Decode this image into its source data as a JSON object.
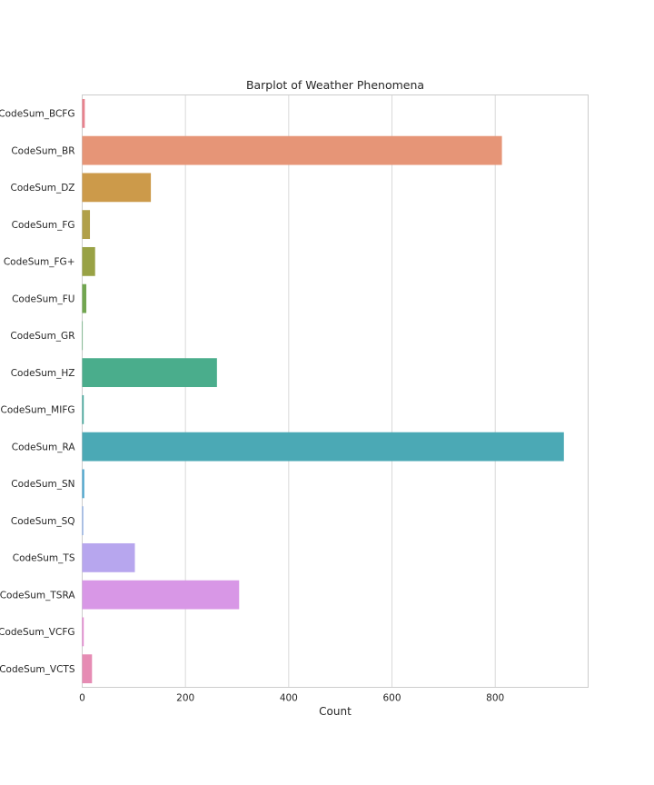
{
  "chart_data": {
    "type": "bar",
    "orientation": "horizontal",
    "title": "Barplot of Weather Phenomena",
    "xlabel": "Count",
    "ylabel": "",
    "xlim": [
      0,
      980
    ],
    "xticks": [
      0,
      200,
      400,
      600,
      800
    ],
    "grid": true,
    "categories": [
      "CodeSum_BCFG",
      "CodeSum_BR",
      "CodeSum_DZ",
      "CodeSum_FG",
      "CodeSum_FG+",
      "CodeSum_FU",
      "CodeSum_GR",
      "CodeSum_HZ",
      "CodeSum_MIFG",
      "CodeSum_RA",
      "CodeSum_SN",
      "CodeSum_SQ",
      "CodeSum_TS",
      "CodeSum_TSRA",
      "CodeSum_VCFG",
      "CodeSum_VCTS"
    ],
    "values": [
      5,
      813,
      133,
      15,
      25,
      8,
      1,
      261,
      3,
      933,
      4,
      2,
      102,
      304,
      3,
      19
    ],
    "colors": [
      "#e8828e",
      "#e69577",
      "#cc9a4a",
      "#b1a049",
      "#99a245",
      "#72a650",
      "#4ea867",
      "#4aad8c",
      "#4aaba0",
      "#4ba9b5",
      "#50a8d0",
      "#83a9e8",
      "#b7a6ee",
      "#d897e6",
      "#e68dd3",
      "#e68cb4"
    ]
  }
}
